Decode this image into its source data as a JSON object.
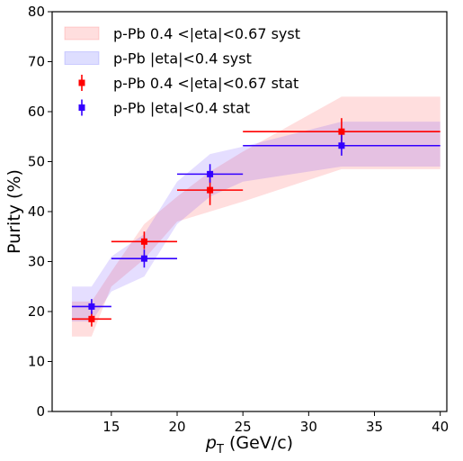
{
  "chart_data": {
    "type": "scatter",
    "title": "",
    "xlabel": {
      "main": "p",
      "sub": "T",
      "rest": " (GeV/c)"
    },
    "ylabel": "Purity (%)",
    "xlim": [
      10.5,
      40.5
    ],
    "ylim": [
      0,
      80
    ],
    "x_ticks": [
      15,
      20,
      25,
      30,
      35,
      40
    ],
    "y_ticks": [
      0,
      10,
      20,
      30,
      40,
      50,
      60,
      70,
      80
    ],
    "grid": false,
    "legend_position": "top-left",
    "legend": [
      {
        "label": "p-Pb 0.4 <|eta|<0.67 syst",
        "kind": "band",
        "color": "#ff0000"
      },
      {
        "label": "p-Pb |eta|<0.4 syst",
        "kind": "band",
        "color": "#0000ff"
      },
      {
        "label": "p-Pb 0.4 <|eta|<0.67 stat",
        "kind": "marker",
        "color": "#ff0000"
      },
      {
        "label": "p-Pb |eta|<0.4 stat",
        "kind": "marker",
        "color": "#3300ff"
      }
    ],
    "series": [
      {
        "name": "p-Pb 0.4 <|eta|<0.67",
        "color": "#ff0000",
        "x": [
          13.5,
          17.5,
          22.5,
          32.5
        ],
        "x_low": [
          12,
          15,
          20,
          25
        ],
        "x_high": [
          15,
          20,
          25,
          40
        ],
        "y": [
          18.5,
          34.0,
          44.3,
          56.0
        ],
        "y_stat_low": [
          17.0,
          32.5,
          41.3,
          53.4
        ],
        "y_stat_high": [
          20.0,
          36.0,
          47.3,
          58.7
        ],
        "syst_band": {
          "x": [
            12,
            13.5,
            15,
            17.5,
            20,
            22.5,
            25,
            32.5,
            40
          ],
          "lo": [
            15.0,
            15.0,
            25.0,
            30.5,
            38.0,
            40.0,
            42.0,
            48.5,
            48.5
          ],
          "hi": [
            22.0,
            22.0,
            28.0,
            37.5,
            43.0,
            48.0,
            52.0,
            63.0,
            63.0
          ]
        }
      },
      {
        "name": "p-Pb |eta|<0.4",
        "color": "#3300ff",
        "x": [
          13.5,
          17.5,
          22.5,
          32.5
        ],
        "x_low": [
          12,
          15,
          20,
          25
        ],
        "x_high": [
          15,
          20,
          25,
          40
        ],
        "y": [
          21.0,
          30.6,
          47.5,
          53.2
        ],
        "y_stat_low": [
          19.5,
          28.8,
          45.8,
          51.2
        ],
        "y_stat_high": [
          22.5,
          32.4,
          49.5,
          55.5
        ],
        "syst_band": {
          "x": [
            12,
            13.5,
            15,
            17.5,
            20,
            22.5,
            25,
            32.5,
            40
          ],
          "lo": [
            18.0,
            18.0,
            24.0,
            27.0,
            37.5,
            43.0,
            46.0,
            49.0,
            49.0
          ],
          "hi": [
            25.0,
            25.0,
            31.0,
            35.5,
            46.0,
            51.5,
            53.0,
            58.0,
            58.0
          ]
        }
      }
    ]
  }
}
